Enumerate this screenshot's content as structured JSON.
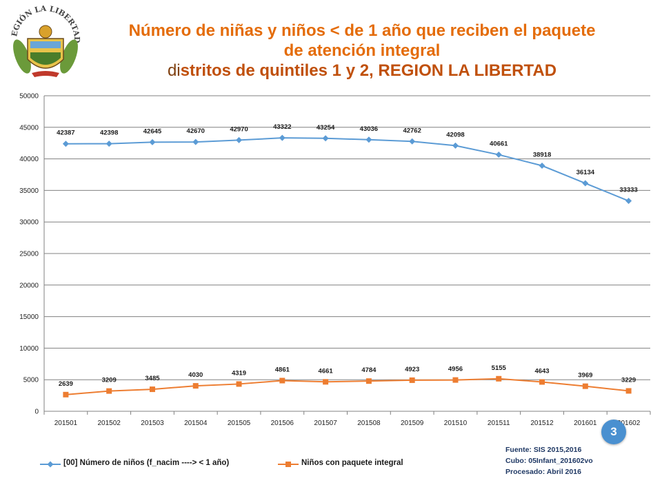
{
  "header": {
    "title_line1": "Número de niñas y niños < de 1 año que reciben el paquete",
    "title_line2": "de atención integral",
    "title_line3a": "di",
    "title_line3b": "stritos de quintiles 1 y 2, REGION LA LIBERTAD",
    "logo_text": "REGIÓN LA LIBERTAD"
  },
  "colors": {
    "title": "#e46c0a",
    "series1": "#5b9bd5",
    "series2": "#ed7d31",
    "grid": "#808080",
    "badge": "#4a90d0"
  },
  "chart_data": {
    "type": "line",
    "title": "",
    "xlabel": "",
    "ylabel": "",
    "ylim": [
      0,
      50000
    ],
    "yticks": [
      0,
      5000,
      10000,
      15000,
      20000,
      25000,
      30000,
      35000,
      40000,
      45000,
      50000
    ],
    "grid": true,
    "legend_position": "bottom",
    "categories": [
      "201501",
      "201502",
      "201503",
      "201504",
      "201505",
      "201506",
      "201507",
      "201508",
      "201509",
      "201510",
      "201511",
      "201512",
      "201601",
      "201602"
    ],
    "series": [
      {
        "name": "[00] Número de niños (f_nacim ----> < 1 año)",
        "marker": "diamond",
        "values": [
          42387,
          42398,
          42645,
          42670,
          42970,
          43322,
          43254,
          43036,
          42762,
          42098,
          40661,
          38918,
          36134,
          33333
        ]
      },
      {
        "name": "Niños con paquete integral",
        "marker": "square",
        "values": [
          2639,
          3209,
          3485,
          4030,
          4319,
          4861,
          4661,
          4784,
          4923,
          4956,
          5155,
          4643,
          3969,
          3229
        ]
      }
    ]
  },
  "footer": {
    "source": "Fuente: SIS 2015,2016",
    "cube": "Cubo: 05Infant_201602vo",
    "processed": "Procesado: Abril 2016",
    "page_number": "3"
  }
}
